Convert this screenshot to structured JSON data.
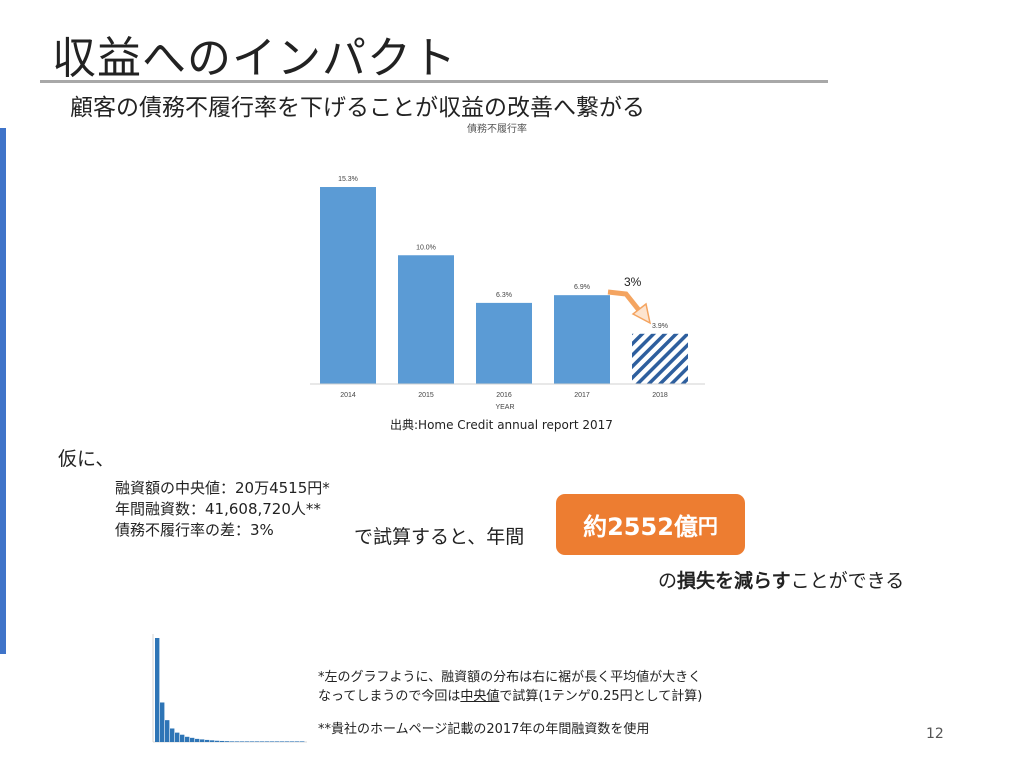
{
  "slide": {
    "title": "収益へのインパクト",
    "subtitle": "顧客の債務不履行率を下げることが収益の改善へ繋がる",
    "source": "出典:Home Credit annual report 2017",
    "kari": "仮に、",
    "assumptions": [
      "融資額の中央値：20万4515円*",
      "年間融資数：41,608,720人**",
      "債務不履行率の差：3%"
    ],
    "calc_text": "で試算すると、年間",
    "result_value": "約2552億",
    "result_unit": "円",
    "conclusion_pre": "の",
    "conclusion_bold": "損失を減らす",
    "conclusion_post": "ことができる",
    "footnote1_line1": "*左のグラフように、融資額の分布は右に裾が長く平均値が大きく",
    "footnote1_line2_pre": "なってしまうので今回は",
    "footnote1_line2_underlined": "中央値",
    "footnote1_line2_post": "で試算(1テンゲ0.25円として計算)",
    "footnote2": "**貴社のホームページ記載の2017年の年間融資数を使用",
    "page_number": "12",
    "colors": {
      "accent_blue": "#3f74c9",
      "bar_blue": "#5b9bd5",
      "result_orange": "#ed7d31",
      "hist_blue": "#2e75b6"
    }
  },
  "chart_data": [
    {
      "type": "bar",
      "title": "債務不履行率",
      "xlabel": "YEAR",
      "ylabel": "",
      "categories": [
        "2014",
        "2015",
        "2016",
        "2017",
        "2018"
      ],
      "values": [
        15.3,
        10.0,
        6.3,
        6.9,
        3.9
      ],
      "labels": [
        "15.3%",
        "10.0%",
        "6.3%",
        "6.9%",
        "3.9%"
      ],
      "hatched_categories": [
        "2018"
      ],
      "annotation": "3%",
      "grid": false,
      "ylim": [
        0,
        16
      ]
    },
    {
      "type": "bar",
      "title": "",
      "xlabel": "",
      "ylabel": "",
      "values": [
        100,
        38,
        21,
        13,
        9,
        7,
        5,
        4,
        3,
        2.5,
        2,
        1.6,
        1.2,
        1,
        0.8,
        0.6,
        0.5,
        0.4,
        0.3,
        0.25,
        0.2,
        0.15,
        0.12,
        0.1,
        0.08,
        0.06,
        0.05,
        0.04,
        0.03,
        0.02
      ],
      "grid": false
    }
  ]
}
